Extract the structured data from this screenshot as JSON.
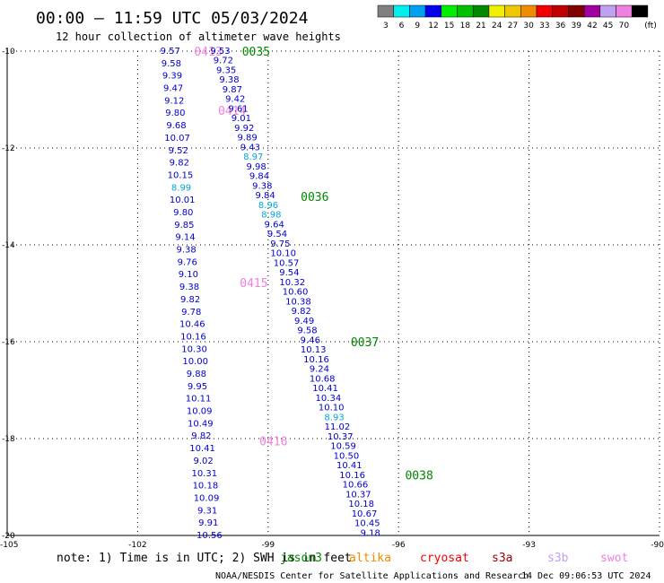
{
  "header": {
    "title": "00:00 – 11:59 UTC 05/03/2024",
    "subtitle": "12 hour collection of altimeter wave heights"
  },
  "colorbar": {
    "unit": "(ft)",
    "entries": [
      {
        "label": "3",
        "color": "#808080"
      },
      {
        "label": "6",
        "color": "#00f0f0"
      },
      {
        "label": "9",
        "color": "#00a0f0"
      },
      {
        "label": "12",
        "color": "#0000f0"
      },
      {
        "label": "15",
        "color": "#00f000"
      },
      {
        "label": "18",
        "color": "#00c000"
      },
      {
        "label": "21",
        "color": "#008800"
      },
      {
        "label": "24",
        "color": "#f0f000"
      },
      {
        "label": "27",
        "color": "#f0c800"
      },
      {
        "label": "30",
        "color": "#f08c00"
      },
      {
        "label": "33",
        "color": "#f00000"
      },
      {
        "label": "36",
        "color": "#c00000"
      },
      {
        "label": "39",
        "color": "#800000"
      },
      {
        "label": "42",
        "color": "#a000a0"
      },
      {
        "label": "45",
        "color": "#c0a0f0"
      },
      {
        "label": "70",
        "color": "#f080e0"
      },
      {
        "label": "",
        "color": "#000000"
      }
    ]
  },
  "footer": {
    "note": "note: 1) Time is in UTC; 2) SWH is in feet",
    "credit": "NOAA/NESDIS Center for Satellite Applications and Research",
    "generated": "14 Dec 09:06:53 UTC 2024",
    "satellites": [
      {
        "label": "jason3",
        "color": "#008800"
      },
      {
        "label": "altika",
        "color": "#f08c00"
      },
      {
        "label": "cryosat",
        "color": "#f00000"
      },
      {
        "label": "s3a",
        "color": "#a00000"
      },
      {
        "label": "s3b",
        "color": "#c0a0f0"
      },
      {
        "label": "swot",
        "color": "#f080e0"
      }
    ]
  },
  "chart_data": {
    "type": "scatter",
    "xlim": [
      -105,
      -90
    ],
    "ylim": [
      -20,
      -10
    ],
    "x_ticks": [
      "-105",
      "-102",
      "-99",
      "-96",
      "-93",
      "-90"
    ],
    "y_ticks": [
      "-10",
      "-12",
      "-14",
      "-16",
      "-18",
      "-20"
    ],
    "grid": true,
    "colors": {
      "value": "#0000c8",
      "low": "#00a8d8",
      "jason3": "#008800",
      "swot": "#f080e0"
    },
    "series": [
      {
        "name": "swot",
        "start": [
          -101.25,
          -10.0
        ],
        "end": [
          -100.35,
          -20.0
        ],
        "values": [
          "9.57",
          "9.58",
          "9.39",
          "9.47",
          "9.12",
          "9.80",
          "9.68",
          "10.07",
          "9.52",
          "9.82",
          "10.15",
          "8.99",
          "10.01",
          "9.80",
          "9.85",
          "9.14",
          "9.38",
          "9.76",
          "9.10",
          "9.38",
          "9.82",
          "9.78",
          "10.46",
          "10.16",
          "10.30",
          "10.00",
          "9.88",
          "9.95",
          "10.11",
          "10.09",
          "10.49",
          "9.82",
          "10.41",
          "9.02",
          "10.31",
          "10.18",
          "10.09",
          "9.31",
          "9.91",
          "10.56"
        ],
        "labels": [
          {
            "text": "0413",
            "y": -10.0,
            "x": -100.7
          },
          {
            "text": "0414",
            "y": -11.22,
            "x": -100.15
          },
          {
            "text": "0415",
            "y": -14.78,
            "x": -99.65
          },
          {
            "text": "0416",
            "y": -18.05,
            "x": -99.2
          }
        ]
      },
      {
        "name": "jason3",
        "start": [
          -100.1,
          -10.0
        ],
        "end": [
          -96.65,
          -19.95
        ],
        "values": [
          "9.53",
          "9.72",
          "9.35",
          "9.38",
          "9.87",
          "9.42",
          "9.61",
          "9.01",
          "9.92",
          "9.89",
          "9.43",
          "8.97",
          "9.98",
          "9.84",
          "9.38",
          "9.84",
          "8.96",
          "8.98",
          "9.64",
          "9.54",
          "9.75",
          "10.10",
          "10.57",
          "9.54",
          "10.32",
          "10.60",
          "10.38",
          "9.82",
          "9.49",
          "9.58",
          "9.46",
          "10.13",
          "10.16",
          "9.24",
          "10.68",
          "10.41",
          "10.34",
          "10.10",
          "8.93",
          "11.02",
          "10.37",
          "10.59",
          "10.50",
          "10.41",
          "10.16",
          "10.66",
          "10.37",
          "10.18",
          "10.67",
          "10.45",
          "9.18"
        ],
        "labels": [
          {
            "text": "0035",
            "y": -10.0,
            "x": -99.6
          },
          {
            "text": "0036",
            "y": -13.0,
            "x": -98.25
          },
          {
            "text": "0037",
            "y": -16.0,
            "x": -97.1
          },
          {
            "text": "0038",
            "y": -18.75,
            "x": -95.85
          }
        ]
      }
    ]
  }
}
